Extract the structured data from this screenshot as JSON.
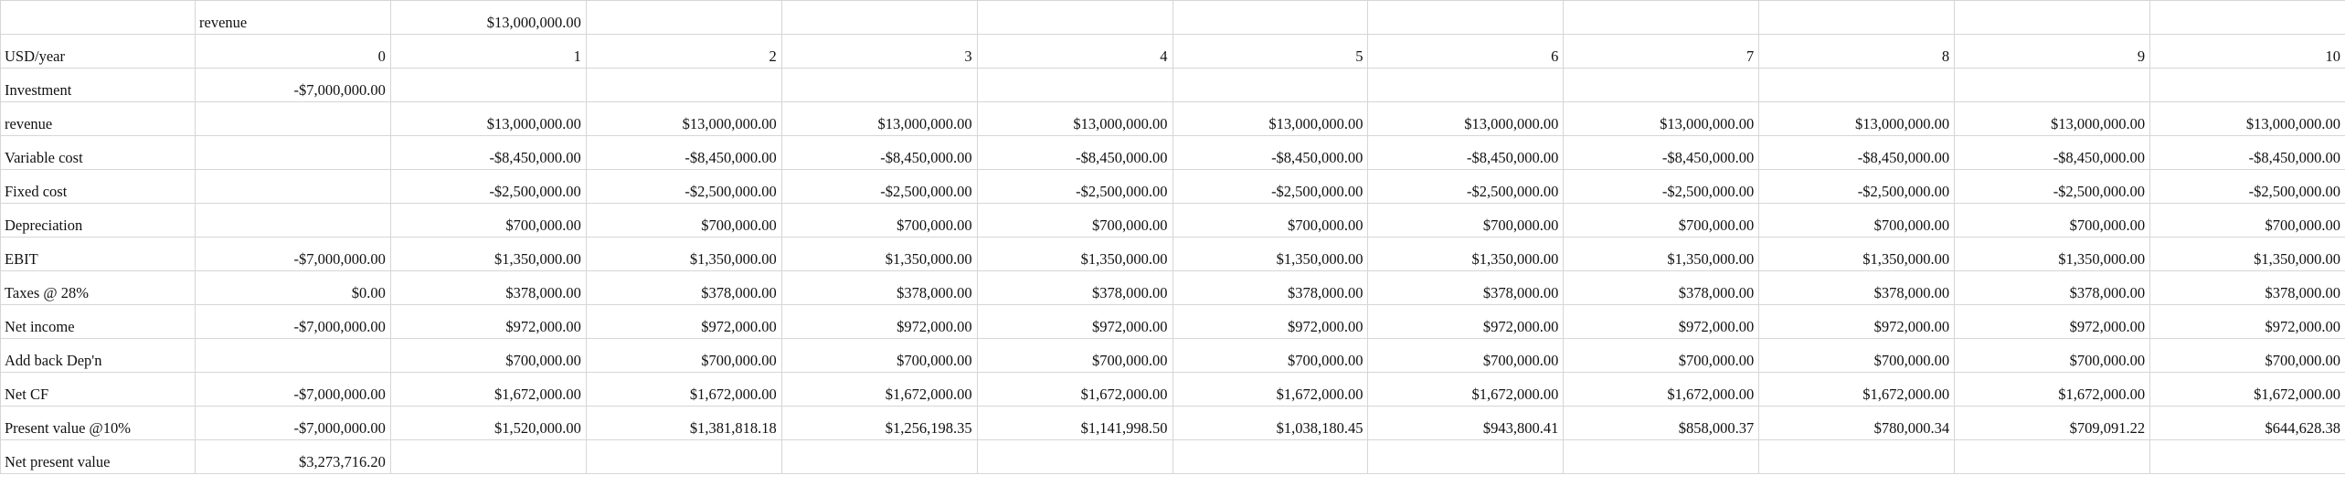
{
  "table": {
    "rows": [
      [
        null,
        "revenue",
        "$13,000,000.00",
        null,
        null,
        null,
        null,
        null,
        null,
        null,
        null,
        null
      ],
      [
        "USD/year",
        0,
        1,
        2,
        3,
        4,
        5,
        6,
        7,
        8,
        9,
        10
      ],
      [
        "Investment",
        "-$7,000,000.00",
        null,
        null,
        null,
        null,
        null,
        null,
        null,
        null,
        null,
        null
      ],
      [
        "revenue",
        null,
        "$13,000,000.00",
        "$13,000,000.00",
        "$13,000,000.00",
        "$13,000,000.00",
        "$13,000,000.00",
        "$13,000,000.00",
        "$13,000,000.00",
        "$13,000,000.00",
        "$13,000,000.00",
        "$13,000,000.00"
      ],
      [
        "Variable cost",
        null,
        "-$8,450,000.00",
        "-$8,450,000.00",
        "-$8,450,000.00",
        "-$8,450,000.00",
        "-$8,450,000.00",
        "-$8,450,000.00",
        "-$8,450,000.00",
        "-$8,450,000.00",
        "-$8,450,000.00",
        "-$8,450,000.00"
      ],
      [
        "Fixed cost",
        null,
        "-$2,500,000.00",
        "-$2,500,000.00",
        "-$2,500,000.00",
        "-$2,500,000.00",
        "-$2,500,000.00",
        "-$2,500,000.00",
        "-$2,500,000.00",
        "-$2,500,000.00",
        "-$2,500,000.00",
        "-$2,500,000.00"
      ],
      [
        "Depreciation",
        null,
        "$700,000.00",
        "$700,000.00",
        "$700,000.00",
        "$700,000.00",
        "$700,000.00",
        "$700,000.00",
        "$700,000.00",
        "$700,000.00",
        "$700,000.00",
        "$700,000.00"
      ],
      [
        "EBIT",
        "-$7,000,000.00",
        "$1,350,000.00",
        "$1,350,000.00",
        "$1,350,000.00",
        "$1,350,000.00",
        "$1,350,000.00",
        "$1,350,000.00",
        "$1,350,000.00",
        "$1,350,000.00",
        "$1,350,000.00",
        "$1,350,000.00"
      ],
      [
        "Taxes @ 28%",
        "$0.00",
        "$378,000.00",
        "$378,000.00",
        "$378,000.00",
        "$378,000.00",
        "$378,000.00",
        "$378,000.00",
        "$378,000.00",
        "$378,000.00",
        "$378,000.00",
        "$378,000.00"
      ],
      [
        "Net income",
        "-$7,000,000.00",
        "$972,000.00",
        "$972,000.00",
        "$972,000.00",
        "$972,000.00",
        "$972,000.00",
        "$972,000.00",
        "$972,000.00",
        "$972,000.00",
        "$972,000.00",
        "$972,000.00"
      ],
      [
        "Add back Dep'n",
        null,
        "$700,000.00",
        "$700,000.00",
        "$700,000.00",
        "$700,000.00",
        "$700,000.00",
        "$700,000.00",
        "$700,000.00",
        "$700,000.00",
        "$700,000.00",
        "$700,000.00"
      ],
      [
        "Net CF",
        "-$7,000,000.00",
        "$1,672,000.00",
        "$1,672,000.00",
        "$1,672,000.00",
        "$1,672,000.00",
        "$1,672,000.00",
        "$1,672,000.00",
        "$1,672,000.00",
        "$1,672,000.00",
        "$1,672,000.00",
        "$1,672,000.00"
      ],
      [
        "Present value @10%",
        "-$7,000,000.00",
        "$1,520,000.00",
        "$1,381,818.18",
        "$1,256,198.35",
        "$1,141,998.50",
        "$1,038,180.45",
        "$943,800.41",
        "$858,000.37",
        "$780,000.34",
        "$709,091.22",
        "$644,628.38"
      ],
      [
        "Net present value",
        "$3,273,716.20",
        null,
        null,
        null,
        null,
        null,
        null,
        null,
        null,
        null,
        null
      ]
    ]
  }
}
